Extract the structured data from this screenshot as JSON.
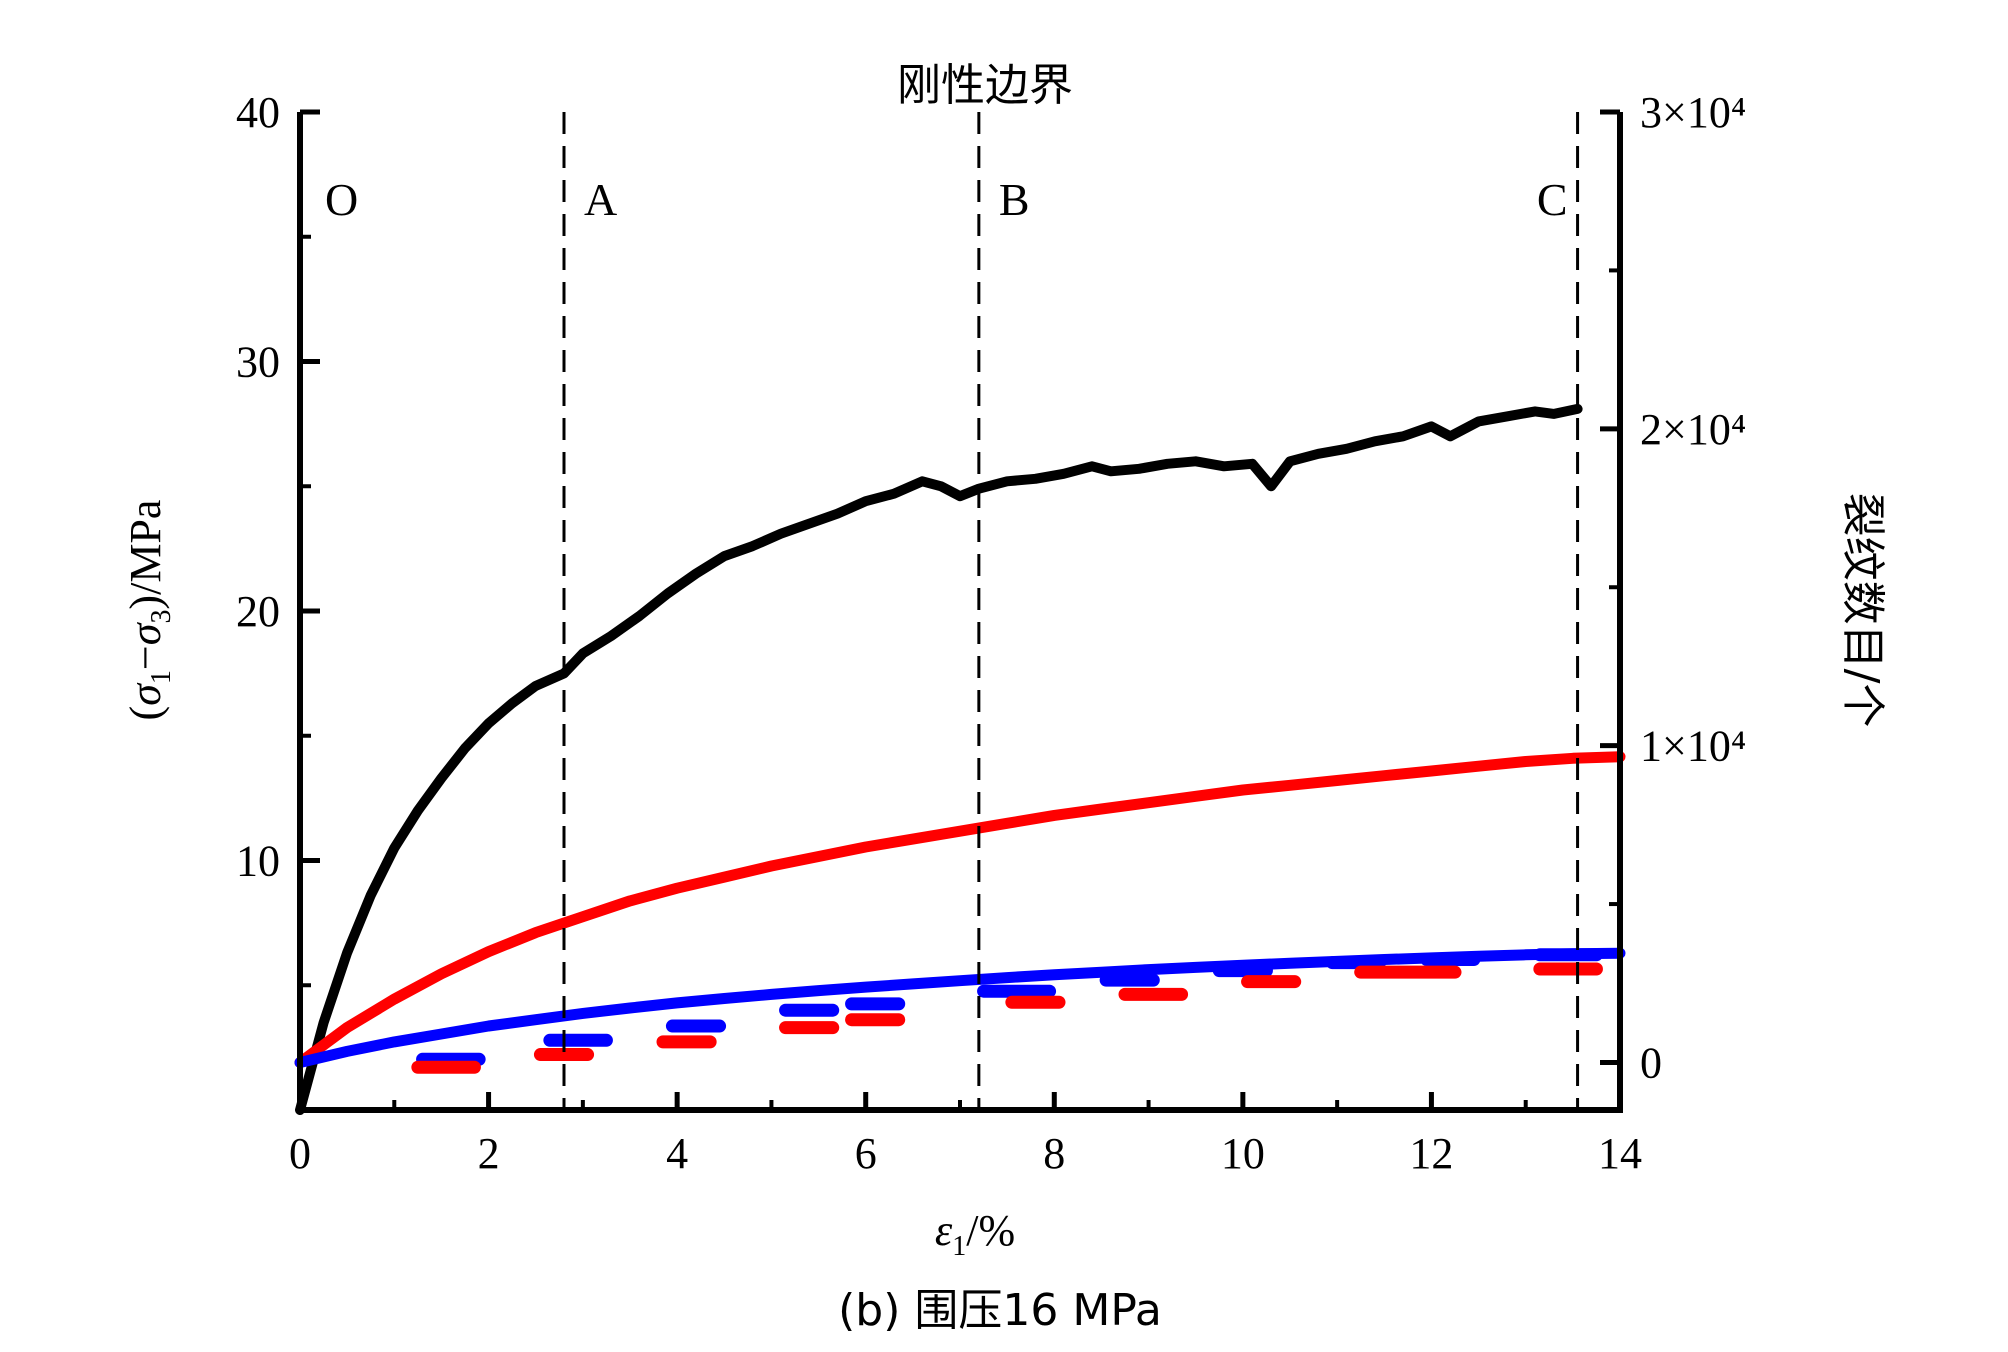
{
  "title": "刚性边界",
  "caption": "(b) 围压16 MPa",
  "chart_data": {
    "type": "line",
    "title": "刚性边界",
    "xlabel": "ε1/%",
    "ylabel_left": "(σ1−σ3)/MPa",
    "ylabel_right": "裂纹数目/个",
    "xlim": [
      0,
      14
    ],
    "ylim_left": [
      0,
      40
    ],
    "ylim_right": [
      -1500,
      30000
    ],
    "x_ticks": [
      "0",
      "2",
      "4",
      "6",
      "8",
      "10",
      "12",
      "14"
    ],
    "y_left_ticks": [
      "10",
      "20",
      "30",
      "40"
    ],
    "y_right_ticks": [
      {
        "label": "0",
        "value": 0
      },
      {
        "label": "1×10⁴",
        "value": 10000
      },
      {
        "label": "2×10⁴",
        "value": 20000
      },
      {
        "label": "3×10⁴",
        "value": 30000
      }
    ],
    "phase_lines": [
      {
        "label": "O",
        "x": 0
      },
      {
        "label": "A",
        "x": 2.8
      },
      {
        "label": "B",
        "x": 7.2
      },
      {
        "label": "C",
        "x": 13.55
      }
    ],
    "series": [
      {
        "axis": "left",
        "color": "#000000",
        "style": "solid",
        "x": [
          0,
          0.25,
          0.5,
          0.75,
          1.0,
          1.25,
          1.5,
          1.75,
          2.0,
          2.25,
          2.5,
          2.8,
          3.0,
          3.3,
          3.6,
          3.9,
          4.2,
          4.5,
          4.8,
          5.1,
          5.4,
          5.7,
          6.0,
          6.3,
          6.6,
          6.8,
          7.0,
          7.2,
          7.5,
          7.8,
          8.1,
          8.4,
          8.6,
          8.9,
          9.2,
          9.5,
          9.8,
          10.1,
          10.3,
          10.5,
          10.8,
          11.1,
          11.4,
          11.7,
          12.0,
          12.2,
          12.5,
          12.8,
          13.1,
          13.3,
          13.55
        ],
        "y": [
          0,
          3.5,
          6.3,
          8.6,
          10.5,
          12.0,
          13.3,
          14.5,
          15.5,
          16.3,
          17.0,
          17.5,
          18.3,
          19.0,
          19.8,
          20.7,
          21.5,
          22.2,
          22.6,
          23.1,
          23.5,
          23.9,
          24.4,
          24.7,
          25.2,
          25.0,
          24.6,
          24.9,
          25.2,
          25.3,
          25.5,
          25.8,
          25.6,
          25.7,
          25.9,
          26.0,
          25.8,
          25.9,
          25.0,
          26.0,
          26.3,
          26.5,
          26.8,
          27.0,
          27.4,
          27.0,
          27.6,
          27.8,
          28.0,
          27.9,
          28.1
        ]
      },
      {
        "axis": "right",
        "color": "#ff0000",
        "style": "solid",
        "x": [
          0,
          0.5,
          1.0,
          1.5,
          2.0,
          2.5,
          3.0,
          3.5,
          4.0,
          4.5,
          5.0,
          5.5,
          6.0,
          6.5,
          7.0,
          7.5,
          8.0,
          8.5,
          9.0,
          9.5,
          10.0,
          10.5,
          11.0,
          11.5,
          12.0,
          12.5,
          13.0,
          13.5,
          14.0
        ],
        "y": [
          0,
          1100,
          2000,
          2800,
          3500,
          4100,
          4600,
          5100,
          5500,
          5850,
          6200,
          6500,
          6800,
          7050,
          7300,
          7550,
          7800,
          8000,
          8200,
          8400,
          8600,
          8750,
          8900,
          9050,
          9200,
          9350,
          9500,
          9600,
          9650
        ]
      },
      {
        "axis": "right",
        "color": "#0000ff",
        "style": "solid",
        "x": [
          0,
          0.5,
          1.0,
          1.5,
          2.0,
          2.5,
          3.0,
          3.5,
          4.0,
          4.5,
          5.0,
          5.5,
          6.0,
          6.5,
          7.0,
          7.5,
          8.0,
          8.5,
          9.0,
          9.5,
          10.0,
          10.5,
          11.0,
          11.5,
          12.0,
          12.5,
          13.0,
          13.5,
          14.0
        ],
        "y": [
          0,
          350,
          650,
          900,
          1150,
          1350,
          1550,
          1720,
          1880,
          2020,
          2150,
          2270,
          2380,
          2480,
          2580,
          2680,
          2770,
          2850,
          2930,
          3000,
          3070,
          3130,
          3190,
          3250,
          3300,
          3350,
          3400,
          3430,
          3450
        ]
      },
      {
        "axis": "right",
        "color": "#0000ff",
        "style": "dashed",
        "x": [
          1.3,
          1.9,
          2.65,
          3.25,
          3.95,
          4.45,
          5.15,
          5.65,
          5.85,
          6.35,
          7.25,
          7.95,
          8.55,
          9.05,
          9.75,
          10.25,
          10.95,
          11.45,
          11.95,
          12.45,
          13.15,
          13.75
        ],
        "y": [
          100,
          100,
          700,
          700,
          1150,
          1150,
          1650,
          1650,
          1850,
          1850,
          2250,
          2250,
          2600,
          2600,
          2900,
          2900,
          3150,
          3150,
          3250,
          3250,
          3400,
          3400
        ]
      },
      {
        "axis": "right",
        "color": "#ff0000",
        "style": "dashed",
        "x": [
          1.25,
          1.85,
          2.55,
          3.05,
          3.85,
          4.35,
          5.15,
          5.65,
          5.85,
          6.35,
          7.55,
          8.05,
          8.75,
          9.35,
          10.05,
          10.55,
          11.25,
          12.25,
          13.15,
          13.75
        ],
        "y": [
          -150,
          -150,
          250,
          250,
          650,
          650,
          1100,
          1100,
          1350,
          1350,
          1900,
          1900,
          2150,
          2150,
          2550,
          2550,
          2850,
          2850,
          2950,
          2950
        ]
      }
    ]
  }
}
